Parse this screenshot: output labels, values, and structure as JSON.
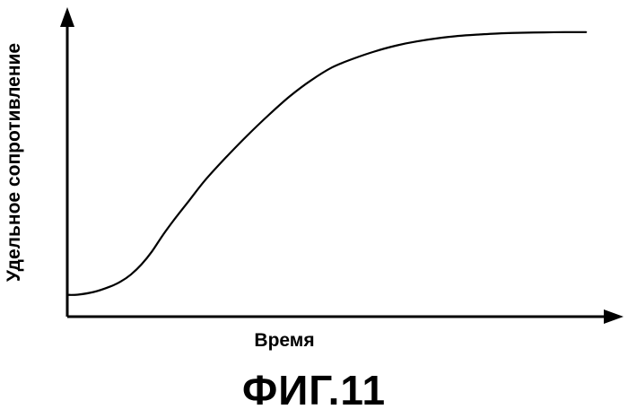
{
  "chart_data": {
    "type": "line",
    "title": "",
    "xlabel": "Время",
    "ylabel": "Удельное сопротивление",
    "x_ticks": false,
    "y_ticks": false,
    "grid": false,
    "xlim": [
      0,
      100
    ],
    "ylim": [
      0,
      100
    ],
    "series": [
      {
        "x": [
          0,
          2,
          5,
          8,
          10,
          12,
          14,
          16,
          18,
          20,
          23,
          26,
          30,
          34,
          38,
          42,
          46,
          50,
          54,
          58,
          62,
          66,
          70,
          74,
          78,
          82,
          86,
          90,
          94,
          98
        ],
        "values": [
          7.5,
          7.6,
          8.5,
          10.3,
          12,
          14.5,
          18,
          22.5,
          28,
          33,
          40,
          47,
          55,
          62.5,
          69.5,
          76,
          81.5,
          86,
          89,
          91.5,
          93.5,
          95,
          96.1,
          96.9,
          97.4,
          97.8,
          98,
          98.1,
          98.2,
          98.2
        ],
        "color": "#000000"
      }
    ]
  },
  "caption": "ФИГ.11"
}
